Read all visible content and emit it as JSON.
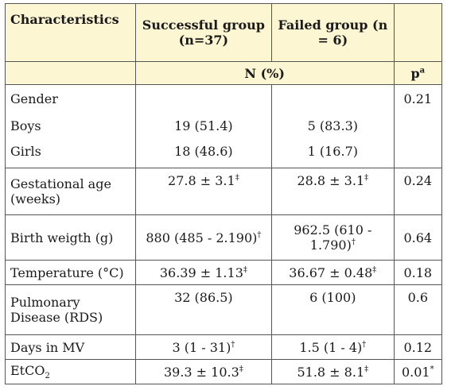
{
  "header": {
    "col1": "Characteristics",
    "col2": "Successful group (n=37)",
    "col3": "Failed group (n = 6)",
    "npct": "N (%)",
    "p": "p",
    "p_sup": "a"
  },
  "rows": {
    "gender": {
      "label": "Gender",
      "p": "0.21"
    },
    "boys": {
      "label": "Boys",
      "s": "19 (51.4)",
      "f": "5 (83.3)"
    },
    "girls": {
      "label": "Girls",
      "s": "18 (48.6)",
      "f": "1 (16.7)"
    },
    "gest": {
      "label": "Gestational age (weeks)",
      "s": "27.8 ± 3.1",
      "s_sup": "‡",
      "f": "28.8 ± 3.1",
      "f_sup": "‡",
      "p": "0.24"
    },
    "birth": {
      "label": "Birth weigth (g)",
      "s": "880 (485 - 2.190)",
      "s_sup": "†",
      "f": "962.5 (610 - 1.790)",
      "f_sup": "†",
      "p": "0.64"
    },
    "temp": {
      "label": "Temperature (°C)",
      "s": "36.39 ± 1.13",
      "s_sup": "‡",
      "f": "36.67 ± 0.48",
      "f_sup": "‡",
      "p": "0.18"
    },
    "pulm": {
      "label": "Pulmonary Disease (RDS)",
      "s": "32 (86.5)",
      "f": "6 (100)",
      "p": "0.6"
    },
    "days": {
      "label": "Days in MV",
      "s": "3 (1 - 31)",
      "s_sup": "†",
      "f": "1.5 (1 - 4)",
      "f_sup": "†",
      "p": "0.12"
    },
    "etco2": {
      "label": "EtCO",
      "label_sub": "2",
      "s": "39.3 ± 10.3",
      "s_sup": "‡",
      "f": "51.8 ± 8.1",
      "f_sup": "‡",
      "p": "0.01",
      "p_sup": "*"
    }
  }
}
